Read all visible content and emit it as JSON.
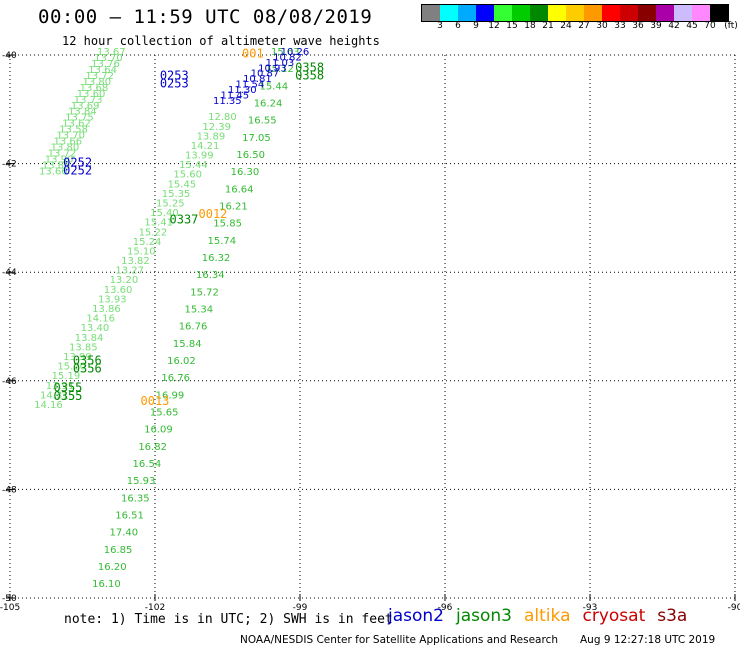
{
  "title": "00:00 – 11:59 UTC 08/08/2019",
  "subtitle": "12 hour collection of altimeter wave heights",
  "legend": {
    "unit": "(ft)",
    "labels": [
      "3",
      "6",
      "9",
      "12",
      "15",
      "18",
      "21",
      "24",
      "27",
      "30",
      "33",
      "36",
      "39",
      "42",
      "45",
      "70"
    ],
    "colors": [
      "#808080",
      "#00ffff",
      "#00aaff",
      "#0000ff",
      "#33ff33",
      "#00cc00",
      "#008800",
      "#ffff00",
      "#ffcc00",
      "#ff9900",
      "#ff0000",
      "#cc0000",
      "#880000",
      "#aa00aa",
      "#ccbbff",
      "#ff88ff",
      "#000000"
    ]
  },
  "map": {
    "lon_range": [
      -105,
      -90
    ],
    "lat_range": [
      -50,
      -40
    ],
    "lon_ticks": [
      "-105",
      "-102",
      "-99",
      "-96",
      "-93",
      "-90"
    ],
    "lat_ticks": [
      "-40",
      "-42",
      "-44",
      "-46",
      "-48",
      "-50"
    ],
    "grid": "dotted",
    "colors": {
      "jason2": "#0000cc",
      "jason3": "#008800",
      "altika": "#ff9900",
      "cryosat": "#cc0000",
      "s3a": "#880000",
      "light": "#77dd77",
      "mid": "#33bb33"
    }
  },
  "tracks": [
    {
      "sat": "jason3",
      "shade": "light",
      "lon0": -104.4,
      "lat0": -42.2,
      "lon1": -103.2,
      "lat1": -40.0,
      "values": [
        "13.66",
        "13.85",
        "13.90",
        "13.72",
        "13.80",
        "13.66",
        "13.70",
        "13.58",
        "13.62",
        "13.75",
        "13.84",
        "13.69",
        "13.73",
        "13.60",
        "13.68",
        "13.80",
        "13.72",
        "13.64",
        "13.76",
        "13.70",
        "13.67"
      ]
    },
    {
      "sat": "jason3",
      "shade": "light",
      "lon0": -104.5,
      "lat0": -46.5,
      "lon1": -100.9,
      "lat1": -41.2,
      "values": [
        "14.16",
        "14.31",
        "13.91",
        "15.19",
        "15.20",
        "13.99",
        "13.85",
        "13.84",
        "13.40",
        "14.16",
        "13.86",
        "13.93",
        "13.60",
        "13.20",
        "13.27",
        "13.82",
        "15.10",
        "15.24",
        "15.22",
        "15.41",
        "15.40",
        "15.25",
        "15.35",
        "15.45",
        "15.60",
        "15.44",
        "13.99",
        "14.21",
        "13.89",
        "12.39",
        "12.80"
      ]
    },
    {
      "sat": "jason3",
      "shade": "mid",
      "lon0": -103.3,
      "lat0": -49.8,
      "lon1": -99.6,
      "lat1": -40.0,
      "values": [
        "16.10",
        "16.20",
        "16.85",
        "17.40",
        "16.51",
        "16.35",
        "15.93",
        "16.54",
        "16.82",
        "16.09",
        "15.65",
        "16.99",
        "16.76",
        "16.02",
        "15.84",
        "16.76",
        "15.34",
        "15.72",
        "16.34",
        "16.32",
        "15.74",
        "15.85",
        "16.21",
        "16.64",
        "16.30",
        "16.50",
        "17.05",
        "16.55",
        "16.24",
        "15.44",
        "15.12",
        "15.63"
      ]
    },
    {
      "sat": "jason2",
      "shade": "dark",
      "lon0": -100.8,
      "lat0": -40.9,
      "lon1": -99.4,
      "lat1": -40.0,
      "values": [
        "11.35",
        "11.45",
        "11.30",
        "11.54",
        "10.81",
        "10.87",
        "10.93",
        "11.03",
        "10.82",
        "10.26"
      ]
    }
  ],
  "markers": [
    {
      "text": "0253",
      "sat": "jason2",
      "lon": -101.9,
      "lat": -40.45
    },
    {
      "text": "0253",
      "sat": "jason2",
      "lon": -101.9,
      "lat": -40.6
    },
    {
      "text": "0252",
      "sat": "jason2",
      "lon": -103.9,
      "lat": -42.05
    },
    {
      "text": "0252",
      "sat": "jason2",
      "lon": -103.9,
      "lat": -42.2
    },
    {
      "text": "0012",
      "sat": "altika",
      "lon": -101.1,
      "lat": -43.0
    },
    {
      "text": "0337",
      "sat": "jason3",
      "lon": -101.7,
      "lat": -43.1
    },
    {
      "text": "0356",
      "sat": "jason3",
      "lon": -103.7,
      "lat": -45.7
    },
    {
      "text": "0356",
      "sat": "jason3",
      "lon": -103.7,
      "lat": -45.85
    },
    {
      "text": "0355",
      "sat": "jason3",
      "lon": -104.1,
      "lat": -46.2
    },
    {
      "text": "0355",
      "sat": "jason3",
      "lon": -104.1,
      "lat": -46.35
    },
    {
      "text": "0013",
      "sat": "altika",
      "lon": -102.3,
      "lat": -46.45
    },
    {
      "text": "0358",
      "sat": "jason3",
      "lon": -99.1,
      "lat": -40.3
    },
    {
      "text": "0358",
      "sat": "jason3",
      "lon": -99.1,
      "lat": -40.45
    },
    {
      "text": "001",
      "sat": "altika",
      "lon": -100.2,
      "lat": -40.05
    }
  ],
  "note": "note:  1) Time is in UTC;  2) SWH is in feet",
  "satellites": [
    {
      "name": "jason2",
      "color": "#0000cc"
    },
    {
      "name": "jason3",
      "color": "#008800"
    },
    {
      "name": "altika",
      "color": "#ff9900"
    },
    {
      "name": "cryosat",
      "color": "#cc0000"
    },
    {
      "name": "s3a",
      "color": "#880000"
    }
  ],
  "credit": "NOAA/NESDIS Center for Satellite Applications and Research",
  "timestamp": "Aug  9 12:27:18 UTC 2019"
}
